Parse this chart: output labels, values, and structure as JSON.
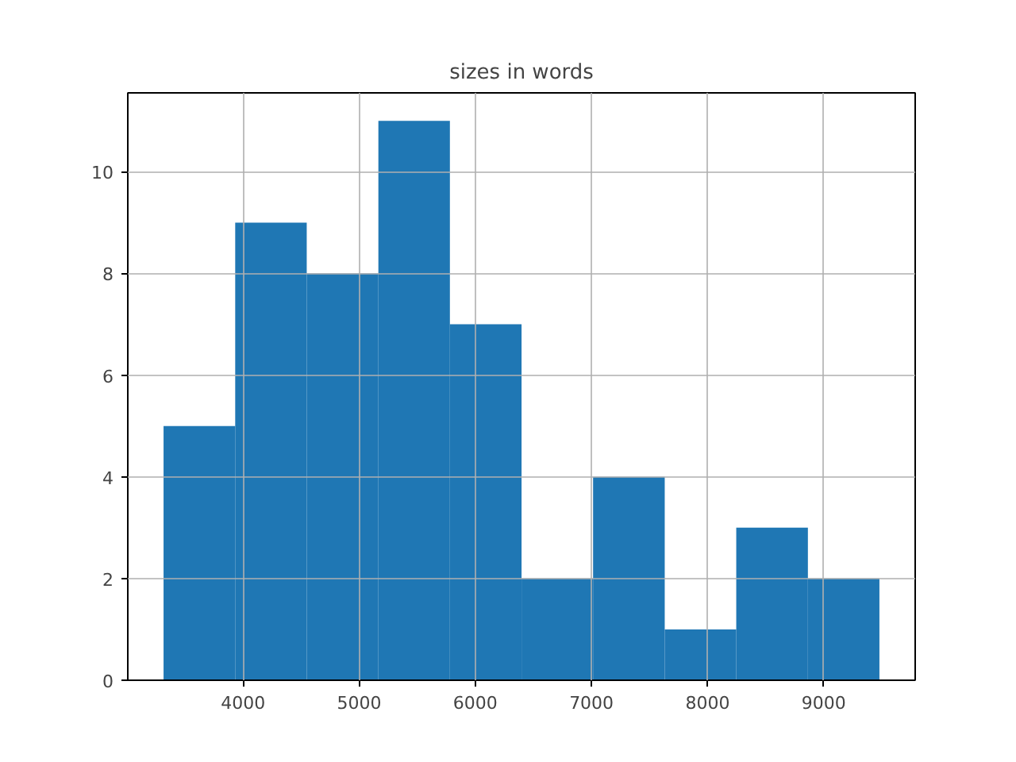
{
  "chart_data": {
    "type": "histogram",
    "title": "sizes in words",
    "bins": [
      3315,
      3932,
      4548,
      5165,
      5781,
      6398,
      7014,
      7631,
      8247,
      8864,
      9480
    ],
    "values": [
      5,
      9,
      8,
      11,
      7,
      2,
      4,
      1,
      3,
      2
    ],
    "color": "#1f77b4",
    "xlim": [
      3007,
      9788
    ],
    "xticks": [
      4000,
      5000,
      6000,
      7000,
      8000,
      9000
    ],
    "ylim": [
      0,
      11.55
    ],
    "yticks": [
      0,
      2,
      4,
      6,
      8,
      10
    ],
    "grid": true
  }
}
